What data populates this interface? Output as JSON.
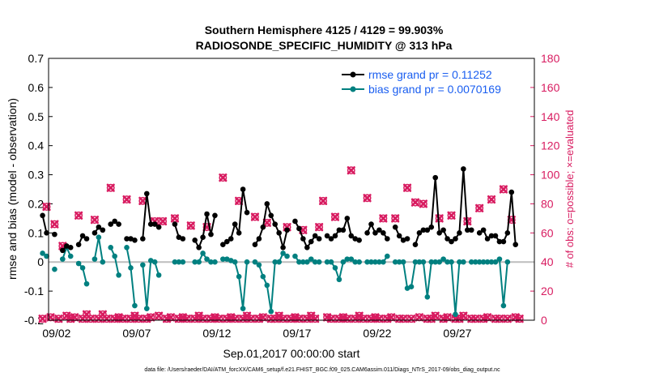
{
  "chart_data": {
    "type": "line",
    "title_line1": "Southern Hemisphere 4125 / 4129 = 99.903%",
    "title_line2": "RADIOSONDE_SPECIFIC_HUMIDITY @ 313 hPa",
    "ylabel_left": "rmse and bias (model - observation)",
    "ylabel_right": "# of obs: o=possible; ×=evaluated",
    "xlabel": "Sep.01,2017 00:00:00 start",
    "footnote": "data file: /Users/raeder/DAI/ATM_forcXX/CAM6_setup/f.e21.FHIST_BGC.f09_025.CAM6assim.011/Diags_NTrS_2017-09/obs_diag_output.nc",
    "ylim_left": [
      -0.2,
      0.7
    ],
    "yticks_left": [
      "-0.2",
      "-0.1",
      "0",
      "0.1",
      "0.2",
      "0.3",
      "0.4",
      "0.5",
      "0.6",
      "0.7"
    ],
    "ylim_right": [
      0,
      180
    ],
    "yticks_right": [
      "0",
      "20",
      "40",
      "60",
      "80",
      "100",
      "120",
      "140",
      "160",
      "180"
    ],
    "xlim_days": [
      0.5,
      30.8
    ],
    "xtick_positions_days": [
      1,
      6,
      11,
      16,
      21,
      26
    ],
    "xtick_labels": [
      "09/02",
      "09/07",
      "09/12",
      "09/17",
      "09/22",
      "09/27"
    ],
    "zero_line": 0,
    "x_days": [
      0.125,
      0.375,
      0.625,
      0.875,
      1.125,
      1.375,
      1.625,
      1.875,
      2.125,
      2.375,
      2.625,
      2.875,
      3.125,
      3.375,
      3.625,
      3.875,
      4.125,
      4.375,
      4.625,
      4.875,
      5.125,
      5.375,
      5.625,
      5.875,
      6.125,
      6.375,
      6.625,
      6.875,
      7.125,
      7.375,
      7.625,
      7.875,
      8.125,
      8.375,
      8.625,
      8.875,
      9.125,
      9.375,
      9.625,
      9.875,
      10.125,
      10.375,
      10.625,
      10.875,
      11.125,
      11.375,
      11.625,
      11.875,
      12.125,
      12.375,
      12.625,
      12.875,
      13.125,
      13.375,
      13.625,
      13.875,
      14.125,
      14.375,
      14.625,
      14.875,
      15.125,
      15.375,
      15.625,
      15.875,
      16.125,
      16.375,
      16.625,
      16.875,
      17.125,
      17.375,
      17.625,
      17.875,
      18.125,
      18.375,
      18.625,
      18.875,
      19.125,
      19.375,
      19.625,
      19.875,
      20.125,
      20.375,
      20.625,
      20.875,
      21.125,
      21.375,
      21.625,
      21.875,
      22.125,
      22.375,
      22.625,
      22.875,
      23.125,
      23.375,
      23.625,
      23.875,
      24.125,
      24.375,
      24.625,
      24.875,
      25.125,
      25.375,
      25.625,
      25.875,
      26.125,
      26.375,
      26.625,
      26.875,
      27.125,
      27.375,
      27.625,
      27.875,
      28.125,
      28.375,
      28.625,
      28.875,
      29.125,
      29.375,
      29.625,
      29.875,
      30.125,
      30.375,
      30.625,
      30.875
    ],
    "series": [
      {
        "name": "rmse grand pr = 0.11252",
        "axis": "left",
        "color": "#000000",
        "values": [
          0.16,
          0.1,
          null,
          0.095,
          null,
          0.04,
          0.055,
          0.05,
          null,
          0.06,
          0.09,
          0.08,
          null,
          0.1,
          0.12,
          0.11,
          null,
          0.13,
          0.14,
          0.13,
          null,
          0.08,
          0.08,
          0.075,
          null,
          0.08,
          0.235,
          0.13,
          0.13,
          0.12,
          null,
          null,
          null,
          0.13,
          0.085,
          0.08,
          null,
          null,
          0.075,
          0.05,
          0.085,
          0.165,
          0.095,
          0.16,
          null,
          0.06,
          0.07,
          0.08,
          0.13,
          0.1,
          0.25,
          0.17,
          null,
          0.06,
          0.08,
          0.12,
          0.2,
          0.16,
          0.13,
          0.1,
          0.05,
          0.11,
          null,
          0.14,
          0.115,
          0.08,
          0.05,
          0.07,
          0.09,
          0.08,
          null,
          0.09,
          0.08,
          0.09,
          0.11,
          0.11,
          0.15,
          0.09,
          0.08,
          0.075,
          null,
          0.1,
          0.13,
          0.1,
          0.11,
          0.1,
          0.08,
          null,
          0.12,
          0.09,
          0.075,
          0.08,
          null,
          0.06,
          0.1,
          0.11,
          0.11,
          0.12,
          0.29,
          0.1,
          0.11,
          0.08,
          0.07,
          0.08,
          0.1,
          0.32,
          0.11,
          0.11,
          null,
          0.1,
          0.11,
          0.08,
          0.09,
          0.09,
          0.07,
          0.07,
          0.1,
          0.24,
          0.06,
          null
        ]
      },
      {
        "name": "bias grand pr = 0.0070169",
        "axis": "left",
        "color": "#008080",
        "values": [
          0.03,
          0.02,
          null,
          -0.025,
          null,
          0.01,
          0.05,
          0.02,
          null,
          -0.005,
          -0.02,
          -0.075,
          null,
          0.01,
          0.085,
          0.0,
          null,
          0.05,
          0.02,
          -0.045,
          null,
          0.05,
          -0.02,
          -0.15,
          null,
          -0.01,
          -0.16,
          0.005,
          0.0,
          -0.045,
          null,
          null,
          null,
          0.0,
          0.0,
          0.0,
          null,
          null,
          0.0,
          0.0,
          0.03,
          0.01,
          0.0,
          0.0,
          null,
          0.01,
          0.01,
          0.005,
          0.0,
          -0.05,
          -0.16,
          0.0,
          null,
          0.0,
          -0.01,
          -0.05,
          -0.08,
          -0.17,
          0.0,
          0.0,
          0.03,
          0.02,
          null,
          0.02,
          0.0,
          0.0,
          0.0,
          0.01,
          0.0,
          0.0,
          null,
          0.0,
          0.0,
          -0.02,
          -0.06,
          0.0,
          0.01,
          0.01,
          0.0,
          0.0,
          null,
          0.0,
          0.0,
          0.0,
          0.0,
          0.0,
          0.02,
          null,
          0.0,
          0.0,
          0.0,
          -0.09,
          -0.085,
          0.0,
          0.0,
          0.0,
          -0.12,
          0.0,
          0.0,
          0.0,
          0.01,
          0.0,
          0.0,
          -0.18,
          0.0,
          0.0,
          null,
          0.0,
          0.0,
          0.0,
          0.0,
          0.0,
          0.0,
          0.0,
          0.01,
          -0.15,
          0.0,
          null
        ]
      },
      {
        "name": "possible",
        "axis": "right",
        "color": "#d81b60",
        "values": [
          1,
          78,
          2,
          66,
          1,
          51,
          3,
          1,
          2,
          72,
          1,
          4,
          1,
          69,
          1,
          4,
          1,
          91,
          1,
          2,
          1,
          83,
          1,
          3,
          1,
          82,
          1,
          2,
          68,
          3,
          68,
          1,
          2,
          70,
          1,
          2,
          1,
          65,
          1,
          3,
          1,
          64,
          1,
          2,
          1,
          98,
          1,
          2,
          1,
          82,
          1,
          3,
          1,
          71,
          1,
          2,
          67,
          1,
          1,
          3,
          1,
          64,
          1,
          2,
          1,
          62,
          1,
          3,
          1,
          64,
          82,
          2,
          1,
          71,
          1,
          2,
          1,
          103,
          1,
          3,
          1,
          84,
          1,
          2,
          1,
          70,
          1,
          2,
          70,
          1,
          1,
          91,
          1,
          81,
          2,
          80,
          1,
          1,
          3,
          70,
          1,
          2,
          72,
          1,
          1,
          3,
          68,
          1,
          1,
          77,
          1,
          2,
          83,
          1,
          1,
          90,
          1,
          69,
          2,
          1
        ]
      },
      {
        "name": "evaluated",
        "axis": "right",
        "color": "#d81b60",
        "values": [
          1,
          78,
          2,
          66,
          1,
          51,
          3,
          1,
          2,
          72,
          1,
          4,
          1,
          69,
          1,
          4,
          1,
          91,
          1,
          2,
          1,
          83,
          1,
          3,
          1,
          82,
          1,
          2,
          68,
          3,
          68,
          1,
          2,
          70,
          1,
          2,
          1,
          65,
          1,
          3,
          1,
          64,
          1,
          2,
          1,
          98,
          1,
          2,
          1,
          82,
          1,
          3,
          1,
          71,
          1,
          2,
          67,
          1,
          1,
          3,
          1,
          64,
          1,
          2,
          1,
          62,
          1,
          3,
          1,
          64,
          82,
          2,
          1,
          71,
          1,
          2,
          1,
          103,
          1,
          3,
          1,
          84,
          1,
          2,
          1,
          70,
          1,
          2,
          70,
          1,
          1,
          91,
          1,
          81,
          2,
          80,
          1,
          1,
          3,
          70,
          1,
          2,
          72,
          1,
          1,
          3,
          68,
          1,
          1,
          77,
          1,
          2,
          83,
          1,
          1,
          90,
          1,
          69,
          2,
          1
        ]
      }
    ],
    "legend_location": "top-right"
  }
}
